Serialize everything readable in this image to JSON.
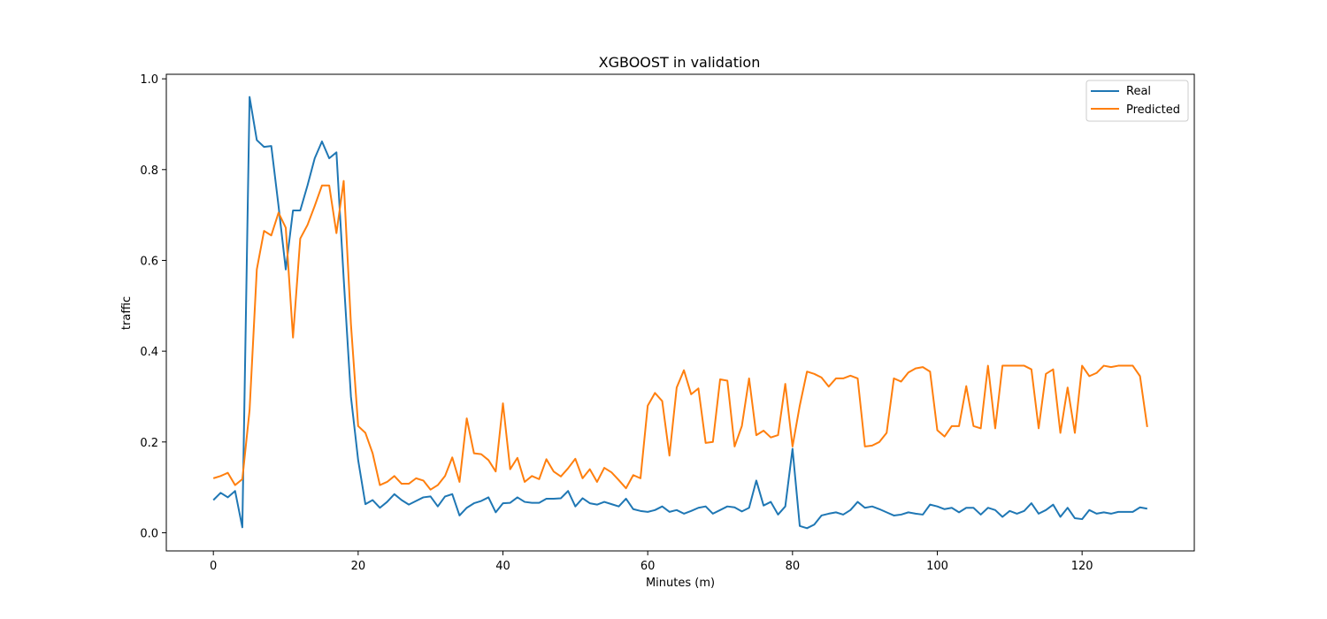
{
  "chart_data": {
    "type": "line",
    "title": "XGBOOST in validation",
    "xlabel": "Minutes (m)",
    "ylabel": "traffic",
    "xlim": [
      -6.5,
      135.5
    ],
    "ylim": [
      -0.04,
      1.01
    ],
    "xticks": [
      "0",
      "20",
      "40",
      "60",
      "80",
      "100",
      "120"
    ],
    "yticks": [
      "0.0",
      "0.2",
      "0.4",
      "0.6",
      "0.8",
      "1.0"
    ],
    "grid": false,
    "legend_position": "top-right",
    "series": [
      {
        "name": "Real",
        "color": "#1f77b4",
        "values": [
          0.072,
          0.088,
          0.078,
          0.092,
          0.012,
          0.96,
          0.865,
          0.85,
          0.852,
          0.72,
          0.58,
          0.71,
          0.71,
          0.765,
          0.825,
          0.862,
          0.825,
          0.838,
          0.56,
          0.3,
          0.16,
          0.063,
          0.072,
          0.055,
          0.068,
          0.085,
          0.072,
          0.062,
          0.07,
          0.078,
          0.08,
          0.058,
          0.08,
          0.085,
          0.038,
          0.055,
          0.065,
          0.07,
          0.078,
          0.045,
          0.065,
          0.066,
          0.078,
          0.068,
          0.066,
          0.066,
          0.075,
          0.075,
          0.076,
          0.092,
          0.058,
          0.076,
          0.065,
          0.062,
          0.068,
          0.063,
          0.058,
          0.075,
          0.052,
          0.048,
          0.046,
          0.05,
          0.058,
          0.046,
          0.05,
          0.042,
          0.048,
          0.055,
          0.058,
          0.042,
          0.05,
          0.058,
          0.056,
          0.047,
          0.055,
          0.115,
          0.06,
          0.068,
          0.04,
          0.058,
          0.185,
          0.015,
          0.01,
          0.018,
          0.038,
          0.042,
          0.045,
          0.04,
          0.05,
          0.068,
          0.055,
          0.058,
          0.052,
          0.045,
          0.038,
          0.04,
          0.045,
          0.042,
          0.04,
          0.062,
          0.058,
          0.052,
          0.055,
          0.045,
          0.055,
          0.055,
          0.04,
          0.055,
          0.05,
          0.035,
          0.048,
          0.042,
          0.048,
          0.065,
          0.042,
          0.05,
          0.062,
          0.035,
          0.055,
          0.032,
          0.03,
          0.05,
          0.042,
          0.045,
          0.042,
          0.046,
          0.046,
          0.046,
          0.056,
          0.053
        ]
      },
      {
        "name": "Predicted",
        "color": "#ff7f0e",
        "values": [
          0.12,
          0.125,
          0.132,
          0.105,
          0.118,
          0.27,
          0.58,
          0.665,
          0.655,
          0.705,
          0.672,
          0.43,
          0.648,
          0.678,
          0.72,
          0.765,
          0.765,
          0.66,
          0.775,
          0.46,
          0.235,
          0.22,
          0.175,
          0.105,
          0.112,
          0.125,
          0.108,
          0.108,
          0.12,
          0.115,
          0.095,
          0.105,
          0.125,
          0.166,
          0.112,
          0.252,
          0.175,
          0.173,
          0.16,
          0.135,
          0.285,
          0.14,
          0.165,
          0.112,
          0.125,
          0.118,
          0.162,
          0.135,
          0.124,
          0.142,
          0.163,
          0.12,
          0.14,
          0.112,
          0.143,
          0.133,
          0.116,
          0.098,
          0.127,
          0.12,
          0.28,
          0.308,
          0.29,
          0.17,
          0.32,
          0.358,
          0.305,
          0.318,
          0.198,
          0.2,
          0.338,
          0.335,
          0.19,
          0.235,
          0.34,
          0.215,
          0.225,
          0.21,
          0.215,
          0.328,
          0.19,
          0.28,
          0.355,
          0.35,
          0.342,
          0.322,
          0.34,
          0.34,
          0.346,
          0.34,
          0.19,
          0.192,
          0.2,
          0.22,
          0.34,
          0.333,
          0.353,
          0.362,
          0.365,
          0.355,
          0.226,
          0.212,
          0.235,
          0.235,
          0.323,
          0.235,
          0.23,
          0.368,
          0.23,
          0.368,
          0.368,
          0.368,
          0.368,
          0.36,
          0.23,
          0.35,
          0.36,
          0.22,
          0.32,
          0.22,
          0.368,
          0.345,
          0.352,
          0.368,
          0.365,
          0.368,
          0.368,
          0.368,
          0.345,
          0.233
        ]
      }
    ]
  }
}
